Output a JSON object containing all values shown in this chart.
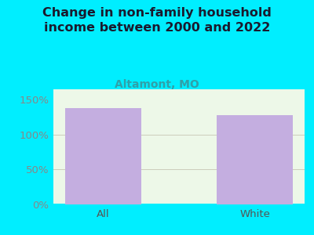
{
  "title": "Change in non-family household\nincome between 2000 and 2022",
  "subtitle": "Altamont, MO",
  "categories": [
    "All",
    "White"
  ],
  "values": [
    138,
    128
  ],
  "bar_color": "#c4aee0",
  "title_color": "#1a1a2e",
  "subtitle_color": "#30a0a8",
  "outer_bg_color": "#00eeff",
  "plot_bg_color": "#edf8e8",
  "ytick_color": "#888888",
  "xtick_color": "#555555",
  "ylim": [
    0,
    165
  ],
  "yticks": [
    0,
    50,
    100,
    150
  ],
  "ytick_labels": [
    "0%",
    "50%",
    "100%",
    "150%"
  ],
  "grid_color": "#ddddcc",
  "title_fontsize": 11.5,
  "subtitle_fontsize": 10,
  "tick_fontsize": 9.5,
  "bar_width": 0.5
}
